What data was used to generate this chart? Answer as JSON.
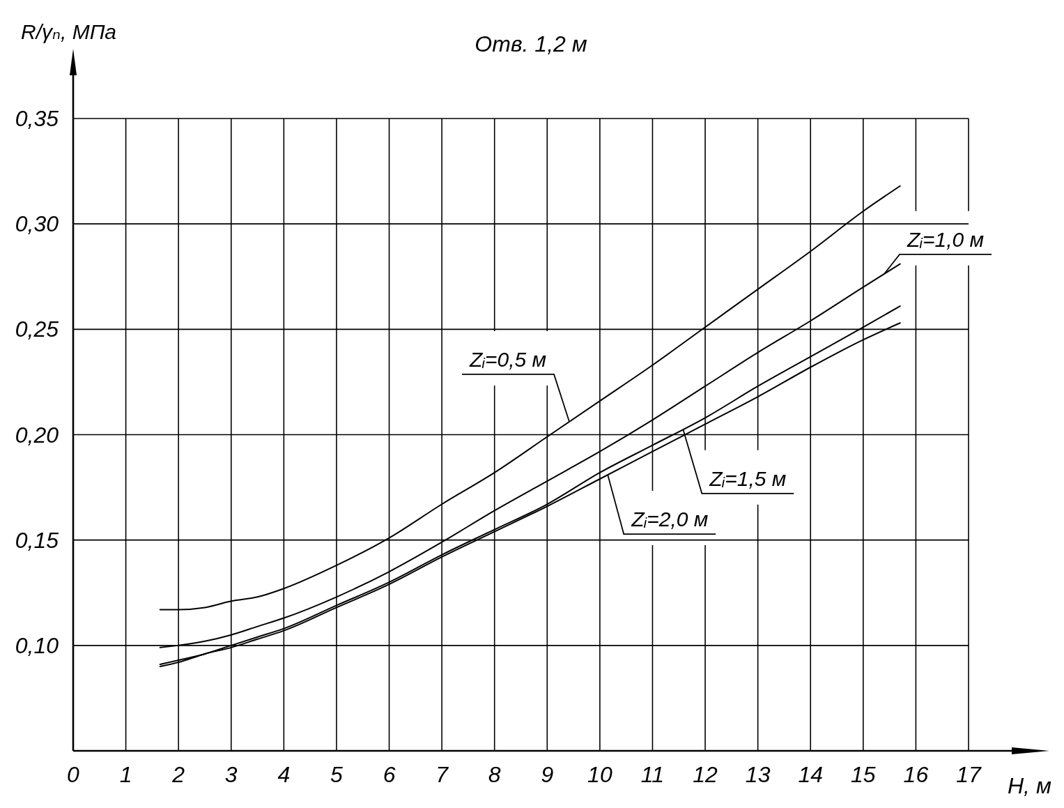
{
  "chart_data": {
    "type": "line",
    "title": "Отв. 1,2 м",
    "xlabel": "H, м",
    "ylabel": "R/γₙ, МПа",
    "xlim": [
      0,
      17
    ],
    "xticks": [
      0,
      1,
      2,
      3,
      4,
      5,
      6,
      7,
      8,
      9,
      10,
      11,
      12,
      13,
      14,
      15,
      16,
      17
    ],
    "ylim": [
      0.05,
      0.35
    ],
    "yticks": [
      {
        "value": 0.1,
        "label": "0,10"
      },
      {
        "value": 0.15,
        "label": "0,15"
      },
      {
        "value": 0.2,
        "label": "0,20"
      },
      {
        "value": 0.25,
        "label": "0,25"
      },
      {
        "value": 0.3,
        "label": "0,30"
      },
      {
        "value": 0.35,
        "label": "0,35"
      }
    ],
    "grid": true,
    "x": [
      1.65,
      2,
      2.5,
      3,
      3.5,
      4,
      5,
      6,
      7,
      8,
      9,
      10,
      11,
      12,
      13,
      14,
      15,
      15.7
    ],
    "series": [
      {
        "name": "Zᵢ=0,5 м",
        "color": "#000000",
        "values": [
          0.117,
          0.117,
          0.118,
          0.121,
          0.123,
          0.127,
          0.138,
          0.151,
          0.167,
          0.182,
          0.199,
          0.216,
          0.233,
          0.251,
          0.269,
          0.287,
          0.306,
          0.318
        ]
      },
      {
        "name": "Zᵢ=1,0 м",
        "color": "#000000",
        "values": [
          0.099,
          0.1,
          0.102,
          0.105,
          0.109,
          0.113,
          0.123,
          0.135,
          0.149,
          0.164,
          0.178,
          0.192,
          0.207,
          0.223,
          0.239,
          0.254,
          0.27,
          0.281
        ]
      },
      {
        "name": "Zᵢ=1,5 м",
        "color": "#000000",
        "values": [
          0.091,
          0.093,
          0.096,
          0.1,
          0.104,
          0.108,
          0.119,
          0.13,
          0.143,
          0.155,
          0.167,
          0.182,
          0.195,
          0.208,
          0.223,
          0.237,
          0.251,
          0.261
        ]
      },
      {
        "name": "Zᵢ=2,0 м",
        "color": "#000000",
        "values": [
          0.09,
          0.092,
          0.096,
          0.099,
          0.103,
          0.107,
          0.118,
          0.129,
          0.142,
          0.154,
          0.166,
          0.179,
          0.192,
          0.205,
          0.218,
          0.232,
          0.245,
          0.253
        ]
      }
    ]
  }
}
